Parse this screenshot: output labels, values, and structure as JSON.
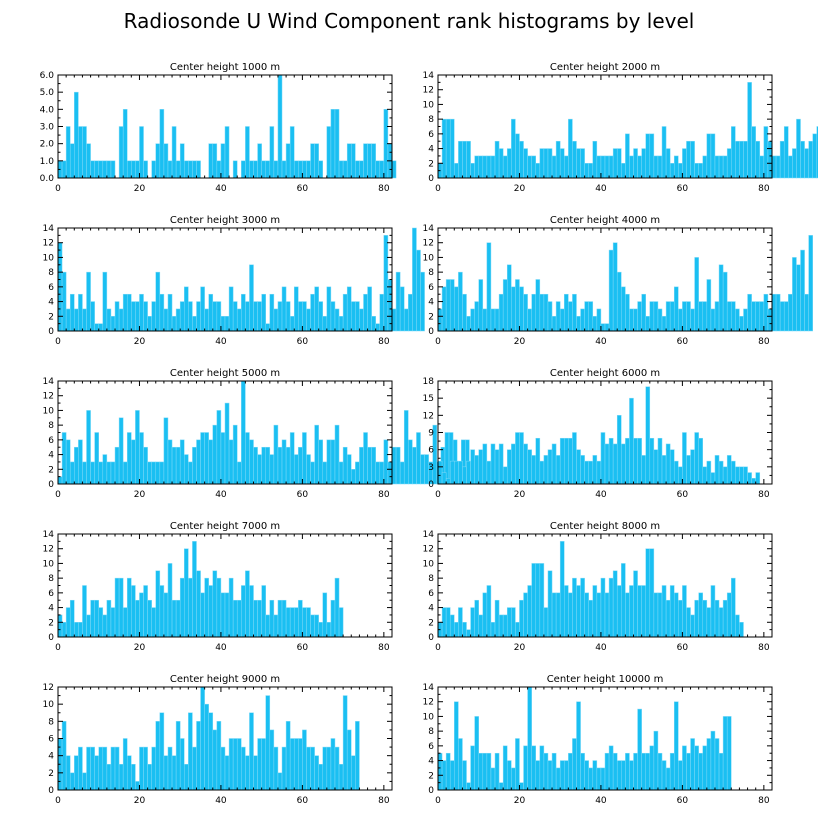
{
  "title": "Radiosonde U Wind Component rank histograms by level",
  "colors": {
    "bar": "#1ABFF2",
    "bar_edge": "#7FD9F7",
    "axis": "#000000"
  },
  "chart_data": [
    {
      "type": "bar",
      "title": "Center height 1000 m",
      "xlim": [
        0,
        82
      ],
      "ylim": [
        0,
        6
      ],
      "xticks": [
        0,
        20,
        40,
        60,
        80
      ],
      "yticks": [
        0,
        1,
        2,
        3,
        4,
        5,
        6
      ],
      "ytick_labels": [
        "0.0",
        "1.0",
        "2.0",
        "3.0",
        "4.0",
        "5.0",
        "6.0"
      ],
      "values": [
        1,
        1,
        3,
        2,
        5,
        3,
        3,
        2,
        1,
        1,
        1,
        1,
        1,
        1,
        0,
        3,
        4,
        1,
        1,
        1,
        3,
        1,
        0,
        1,
        2,
        4,
        2,
        1,
        3,
        1,
        2,
        1,
        1,
        1,
        1,
        0,
        0,
        2,
        2,
        1,
        2,
        3,
        0,
        1,
        0,
        1,
        3,
        1,
        1,
        2,
        1,
        1,
        3,
        1,
        6,
        1,
        2,
        3,
        1,
        1,
        1,
        1,
        2,
        2,
        1,
        0,
        3,
        4,
        4,
        1,
        1,
        2,
        2,
        1,
        1,
        2,
        2,
        2,
        1,
        1,
        4,
        2,
        1
      ]
    },
    {
      "type": "bar",
      "title": "Center height 2000 m",
      "xlim": [
        0,
        82
      ],
      "ylim": [
        0,
        14
      ],
      "xticks": [
        0,
        20,
        40,
        60,
        80
      ],
      "yticks": [
        0,
        2,
        4,
        6,
        8,
        10,
        12,
        14
      ],
      "ytick_labels": [
        "0",
        "2",
        "4",
        "6",
        "8",
        "10",
        "12",
        "14"
      ],
      "values": [
        2,
        8,
        8,
        8,
        2,
        5,
        5,
        5,
        2,
        3,
        3,
        3,
        3,
        3,
        5,
        4,
        3,
        4,
        8,
        6,
        5,
        4,
        3,
        3,
        2,
        4,
        4,
        4,
        3,
        5,
        4,
        3,
        8,
        5,
        4,
        4,
        2,
        2,
        5,
        3,
        3,
        3,
        3,
        4,
        4,
        2,
        6,
        3,
        4,
        3,
        4,
        6,
        6,
        3,
        3,
        7,
        4,
        2,
        3,
        2,
        4,
        5,
        5,
        2,
        2,
        3,
        6,
        6,
        3,
        3,
        3,
        4,
        7,
        5,
        5,
        5,
        13,
        7,
        5,
        3,
        7,
        5,
        3,
        3,
        5,
        7,
        3,
        4,
        8,
        5,
        4,
        5,
        6,
        7,
        6
      ]
    },
    {
      "type": "bar",
      "title": "Center height 3000 m",
      "xlim": [
        0,
        82
      ],
      "ylim": [
        0,
        14
      ],
      "xticks": [
        0,
        20,
        40,
        60,
        80
      ],
      "yticks": [
        0,
        2,
        4,
        6,
        8,
        10,
        12,
        14
      ],
      "ytick_labels": [
        "0",
        "2",
        "4",
        "6",
        "8",
        "10",
        "12",
        "14"
      ],
      "values": [
        12,
        8,
        3,
        5,
        3,
        5,
        3,
        8,
        4,
        1,
        1,
        8,
        3,
        2,
        4,
        3,
        5,
        5,
        4,
        4,
        5,
        4,
        2,
        4,
        8,
        5,
        3,
        5,
        2,
        3,
        4,
        6,
        4,
        2,
        4,
        6,
        3,
        5,
        4,
        4,
        2,
        2,
        6,
        4,
        3,
        5,
        4,
        9,
        4,
        4,
        5,
        1,
        5,
        3,
        4,
        6,
        4,
        2,
        6,
        4,
        4,
        3,
        5,
        6,
        4,
        2,
        6,
        4,
        3,
        2,
        5,
        6,
        4,
        4,
        3,
        5,
        6,
        2,
        1,
        5,
        13,
        7,
        3,
        8,
        6,
        3,
        5,
        14,
        11,
        8
      ]
    },
    {
      "type": "bar",
      "title": "Center height 4000 m",
      "xlim": [
        0,
        82
      ],
      "ylim": [
        0,
        14
      ],
      "xticks": [
        0,
        20,
        40,
        60,
        80
      ],
      "yticks": [
        0,
        2,
        4,
        6,
        8,
        10,
        12,
        14
      ],
      "ytick_labels": [
        "0",
        "2",
        "4",
        "6",
        "8",
        "10",
        "12",
        "14"
      ],
      "values": [
        3,
        6,
        7,
        7,
        6,
        8,
        5,
        2,
        3,
        4,
        7,
        3,
        12,
        3,
        3,
        5,
        7,
        9,
        6,
        7,
        6,
        5,
        3,
        5,
        7,
        5,
        5,
        4,
        2,
        4,
        3,
        5,
        4,
        5,
        2,
        3,
        4,
        4,
        2,
        3,
        1,
        1,
        11,
        12,
        8,
        6,
        5,
        3,
        3,
        4,
        5,
        2,
        4,
        4,
        3,
        2,
        4,
        4,
        6,
        3,
        4,
        4,
        3,
        10,
        4,
        4,
        7,
        3,
        4,
        9,
        8,
        4,
        4,
        3,
        2,
        3,
        5,
        4,
        4,
        4,
        5,
        3,
        5,
        5,
        4,
        4,
        5,
        10,
        9,
        11,
        5,
        13
      ]
    },
    {
      "type": "bar",
      "title": "Center height 5000 m",
      "xlim": [
        0,
        82
      ],
      "ylim": [
        0,
        14
      ],
      "xticks": [
        0,
        20,
        40,
        60,
        80
      ],
      "yticks": [
        0,
        2,
        4,
        6,
        8,
        10,
        12,
        14
      ],
      "ytick_labels": [
        "0",
        "2",
        "4",
        "6",
        "8",
        "10",
        "12",
        "14"
      ],
      "values": [
        1,
        7,
        6,
        3,
        5,
        6,
        3,
        10,
        3,
        7,
        3,
        4,
        3,
        3,
        5,
        9,
        3,
        7,
        6,
        10,
        7,
        5,
        3,
        3,
        3,
        3,
        9,
        6,
        5,
        5,
        6,
        4,
        3,
        5,
        6,
        7,
        7,
        6,
        8,
        10,
        7,
        11,
        6,
        8,
        3,
        14,
        7,
        6,
        5,
        4,
        5,
        5,
        4,
        8,
        5,
        6,
        5,
        7,
        4,
        5,
        7,
        4,
        3,
        8,
        6,
        3,
        6,
        6,
        8,
        3,
        5,
        4,
        2,
        3,
        5,
        7,
        5,
        5,
        3,
        3,
        6,
        3,
        5,
        5,
        3,
        10,
        6,
        5,
        7,
        4,
        4,
        3,
        8,
        3,
        5,
        7,
        7,
        6,
        3,
        6,
        6
      ]
    },
    {
      "type": "bar",
      "title": "Center height 6000 m",
      "xlim": [
        0,
        82
      ],
      "ylim": [
        0,
        18
      ],
      "xticks": [
        0,
        20,
        40,
        60,
        80
      ],
      "yticks": [
        0,
        3,
        6,
        9,
        12,
        15,
        18
      ],
      "ytick_labels": [
        "0",
        "3",
        "6",
        "9",
        "12",
        "15",
        "18"
      ],
      "values": [
        4,
        2,
        1,
        4,
        4,
        4,
        3,
        4,
        6,
        5,
        6,
        7,
        4,
        7,
        6,
        7,
        3,
        6,
        7,
        9,
        9,
        7,
        6,
        5,
        8,
        4,
        5,
        6,
        7,
        5,
        8,
        8,
        8,
        9,
        6,
        5,
        4,
        4,
        5,
        4,
        9,
        7,
        8,
        7,
        12,
        7,
        8,
        15,
        8,
        8,
        5,
        17,
        8,
        6,
        8,
        5,
        7,
        6,
        4,
        3,
        9,
        5,
        6,
        9,
        8,
        3,
        4,
        2,
        5,
        4,
        3,
        5,
        4,
        3,
        3,
        3,
        2,
        1,
        2
      ]
    },
    {
      "type": "bar",
      "title": "Center height 7000 m",
      "xlim": [
        0,
        82
      ],
      "ylim": [
        0,
        14
      ],
      "xticks": [
        0,
        20,
        40,
        60,
        80
      ],
      "yticks": [
        0,
        2,
        4,
        6,
        8,
        10,
        12,
        14
      ],
      "ytick_labels": [
        "0",
        "2",
        "4",
        "6",
        "8",
        "10",
        "12",
        "14"
      ],
      "values": [
        3,
        2,
        4,
        5,
        2,
        2,
        7,
        3,
        5,
        5,
        4,
        3,
        5,
        4,
        8,
        8,
        4,
        8,
        7,
        5,
        6,
        7,
        5,
        4,
        9,
        7,
        6,
        10,
        5,
        5,
        8,
        12,
        8,
        13,
        9,
        6,
        8,
        7,
        9,
        8,
        6,
        6,
        8,
        5,
        5,
        7,
        9,
        7,
        5,
        5,
        7,
        3,
        5,
        3,
        5,
        5,
        4,
        4,
        4,
        5,
        4,
        4,
        3,
        3,
        2,
        6,
        2,
        5,
        8,
        4
      ]
    },
    {
      "type": "bar",
      "title": "Center height 8000 m",
      "xlim": [
        0,
        82
      ],
      "ylim": [
        0,
        14
      ],
      "xticks": [
        0,
        20,
        40,
        60,
        80
      ],
      "yticks": [
        0,
        2,
        4,
        6,
        8,
        10,
        12,
        14
      ],
      "ytick_labels": [
        "0",
        "2",
        "4",
        "6",
        "8",
        "10",
        "12",
        "14"
      ],
      "values": [
        2,
        4,
        4,
        3,
        2,
        4,
        2,
        1,
        4,
        5,
        3,
        6,
        7,
        2,
        5,
        3,
        3,
        4,
        4,
        2,
        5,
        6,
        7,
        10,
        10,
        10,
        4,
        9,
        6,
        6,
        13,
        7,
        6,
        8,
        7,
        8,
        6,
        5,
        7,
        6,
        8,
        6,
        8,
        9,
        7,
        10,
        6,
        7,
        9,
        7,
        7,
        12,
        12,
        6,
        6,
        7,
        5,
        7,
        6,
        5,
        7,
        4,
        3,
        5,
        6,
        5,
        4,
        7,
        5,
        4,
        5,
        6,
        8,
        3,
        2
      ]
    },
    {
      "type": "bar",
      "title": "Center height 9000 m",
      "xlim": [
        0,
        82
      ],
      "ylim": [
        0,
        12
      ],
      "xticks": [
        0,
        20,
        40,
        60,
        80
      ],
      "yticks": [
        0,
        2,
        4,
        6,
        8,
        10,
        12
      ],
      "ytick_labels": [
        "0",
        "2",
        "4",
        "6",
        "8",
        "10",
        "12"
      ],
      "values": [
        6,
        8,
        4,
        2,
        4,
        5,
        2,
        5,
        5,
        4,
        5,
        5,
        3,
        5,
        5,
        3,
        6,
        4,
        3,
        1,
        5,
        5,
        3,
        5,
        8,
        9,
        4,
        5,
        4,
        8,
        6,
        3,
        9,
        5,
        8,
        12,
        10,
        9,
        7,
        8,
        5,
        4,
        6,
        6,
        6,
        5,
        4,
        9,
        4,
        6,
        6,
        11,
        7,
        5,
        2,
        5,
        8,
        6,
        6,
        6,
        7,
        5,
        5,
        4,
        3,
        5,
        5,
        6,
        5,
        3,
        11,
        7,
        4,
        8
      ]
    },
    {
      "type": "bar",
      "title": "Center height 10000 m",
      "xlim": [
        0,
        82
      ],
      "ylim": [
        0,
        14
      ],
      "xticks": [
        0,
        20,
        40,
        60,
        80
      ],
      "yticks": [
        0,
        2,
        4,
        6,
        8,
        10,
        12,
        14
      ],
      "ytick_labels": [
        "0",
        "2",
        "4",
        "6",
        "8",
        "10",
        "12",
        "14"
      ],
      "values": [
        5,
        4,
        5,
        4,
        12,
        7,
        4,
        1,
        6,
        10,
        5,
        5,
        5,
        3,
        5,
        1,
        6,
        4,
        3,
        7,
        1,
        6,
        14,
        6,
        4,
        6,
        5,
        4,
        5,
        3,
        4,
        4,
        5,
        7,
        12,
        5,
        4,
        3,
        4,
        3,
        3,
        5,
        6,
        5,
        4,
        4,
        5,
        4,
        5,
        11,
        5,
        5,
        6,
        8,
        5,
        4,
        3,
        5,
        12,
        4,
        6,
        5,
        7,
        6,
        5,
        6,
        7,
        8,
        7,
        5,
        10,
        10
      ]
    }
  ]
}
